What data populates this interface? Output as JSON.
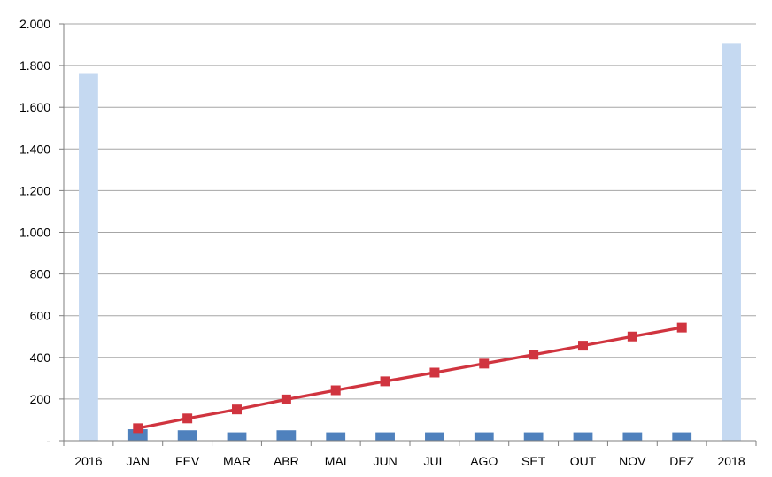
{
  "chart_data": {
    "type": "bar",
    "categories": [
      "2016",
      "JAN",
      "FEV",
      "MAR",
      "ABR",
      "MAI",
      "JUN",
      "JUL",
      "AGO",
      "SET",
      "OUT",
      "NOV",
      "DEZ",
      "2018"
    ],
    "ylim": [
      0,
      2000
    ],
    "yticks": [
      {
        "value": 0,
        "label": "-"
      },
      {
        "value": 200,
        "label": "200"
      },
      {
        "value": 400,
        "label": "400"
      },
      {
        "value": 600,
        "label": "600"
      },
      {
        "value": 800,
        "label": "800"
      },
      {
        "value": 1000,
        "label": "1.000"
      },
      {
        "value": 1200,
        "label": "1.200"
      },
      {
        "value": 1400,
        "label": "1.400"
      },
      {
        "value": 1600,
        "label": "1.600"
      },
      {
        "value": 1800,
        "label": "1.800"
      },
      {
        "value": 2000,
        "label": "2.000"
      }
    ],
    "grid": true,
    "series": [
      {
        "type": "bar",
        "color": "#c5d9f1",
        "values": [
          1760,
          null,
          null,
          null,
          null,
          null,
          null,
          null,
          null,
          null,
          null,
          null,
          null,
          1905
        ]
      },
      {
        "type": "bar",
        "color": "#4f81bd",
        "values": [
          null,
          55,
          50,
          40,
          50,
          40,
          40,
          40,
          40,
          40,
          40,
          40,
          40,
          null
        ]
      },
      {
        "type": "line",
        "color": "#d0343f",
        "marker": "square",
        "values": [
          null,
          60,
          107,
          150,
          198,
          242,
          285,
          327,
          370,
          413,
          456,
          500,
          543,
          null
        ]
      }
    ]
  }
}
